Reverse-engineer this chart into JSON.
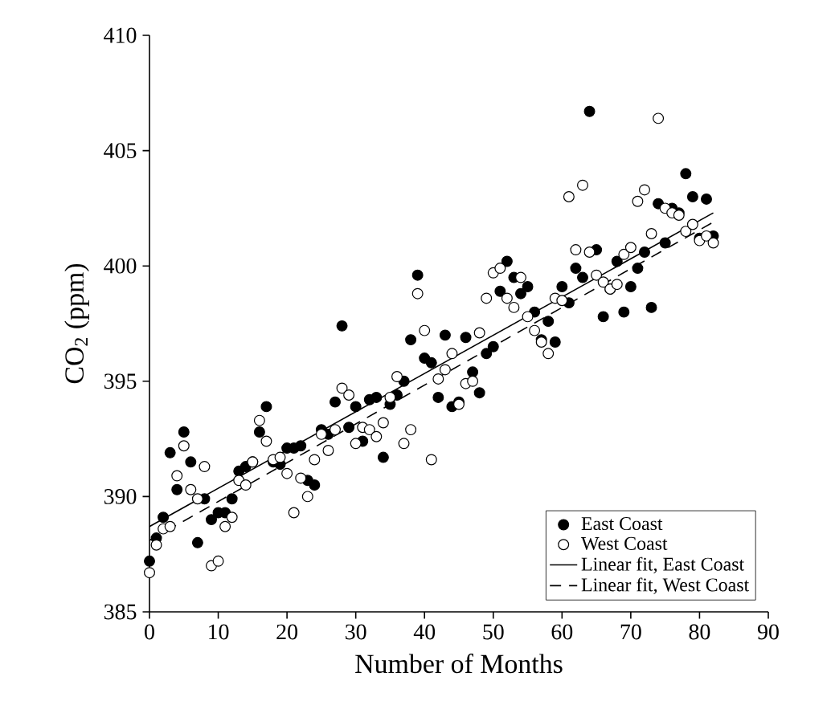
{
  "chart_data": {
    "type": "scatter",
    "xlabel": "Number of Months",
    "ylabel": "CO$_{2}$ (ppm)",
    "xlim": [
      0,
      90
    ],
    "ylim": [
      385,
      410
    ],
    "xticks": [
      0,
      10,
      20,
      30,
      40,
      50,
      60,
      70,
      80,
      90
    ],
    "yticks": [
      385,
      390,
      395,
      400,
      405,
      410
    ],
    "grid": false,
    "legend": "bottom right",
    "series": [
      {
        "name": "East Coast",
        "marker": "circle",
        "color": "#000000",
        "x": [
          0,
          1,
          2,
          3,
          4,
          5,
          6,
          7,
          8,
          9,
          10,
          11,
          12,
          13,
          14,
          15,
          16,
          17,
          18,
          19,
          20,
          21,
          22,
          23,
          24,
          25,
          26,
          27,
          28,
          29,
          30,
          31,
          32,
          33,
          34,
          35,
          36,
          37,
          38,
          39,
          40,
          41,
          42,
          43,
          44,
          45,
          46,
          47,
          48,
          49,
          50,
          51,
          52,
          53,
          54,
          55,
          56,
          57,
          58,
          59,
          60,
          61,
          62,
          63,
          64,
          65,
          66,
          67,
          68,
          69,
          70,
          71,
          72,
          73,
          74,
          75,
          76,
          77,
          78,
          79,
          80,
          81,
          82
        ],
        "values": [
          387.2,
          388.2,
          389.1,
          391.9,
          390.3,
          392.8,
          391.5,
          388.0,
          389.9,
          389.0,
          389.3,
          389.3,
          389.9,
          391.1,
          391.3,
          391.5,
          392.8,
          393.9,
          391.5,
          391.4,
          392.1,
          392.1,
          392.2,
          390.7,
          390.5,
          392.9,
          392.7,
          394.1,
          397.4,
          393.0,
          393.9,
          392.4,
          394.2,
          394.3,
          391.7,
          394.0,
          394.4,
          395.0,
          396.8,
          399.6,
          396.0,
          395.8,
          394.3,
          397.0,
          393.9,
          394.1,
          396.9,
          395.4,
          394.5,
          396.2,
          396.5,
          398.9,
          400.2,
          399.5,
          398.8,
          399.1,
          398.0,
          396.8,
          397.6,
          396.7,
          399.1,
          398.4,
          399.9,
          399.5,
          406.7,
          400.7,
          397.8,
          399.0,
          400.2,
          398.0,
          399.1,
          399.9,
          400.6,
          398.2,
          402.7,
          401.0,
          402.5,
          402.3,
          404.0,
          403.0,
          401.2,
          402.9,
          401.3
        ]
      },
      {
        "name": "West Coast",
        "marker": "circle",
        "color": "#ffffff",
        "x": [
          0,
          1,
          2,
          3,
          4,
          5,
          6,
          7,
          8,
          9,
          10,
          11,
          12,
          13,
          14,
          15,
          16,
          17,
          18,
          19,
          20,
          21,
          22,
          23,
          24,
          25,
          26,
          27,
          28,
          29,
          30,
          31,
          32,
          33,
          34,
          35,
          36,
          37,
          38,
          39,
          40,
          41,
          42,
          43,
          44,
          45,
          46,
          47,
          48,
          49,
          50,
          51,
          52,
          53,
          54,
          55,
          56,
          57,
          58,
          59,
          60,
          61,
          62,
          63,
          64,
          65,
          66,
          67,
          68,
          69,
          70,
          71,
          72,
          73,
          74,
          75,
          76,
          77,
          78,
          79,
          80,
          81,
          82
        ],
        "values": [
          386.7,
          387.9,
          388.6,
          388.7,
          390.9,
          392.2,
          390.3,
          389.9,
          391.3,
          387.0,
          387.2,
          388.7,
          389.1,
          390.7,
          390.5,
          391.5,
          393.3,
          392.4,
          391.6,
          391.7,
          391.0,
          389.3,
          390.8,
          390.0,
          391.6,
          392.7,
          392.0,
          392.9,
          394.7,
          394.4,
          392.3,
          393.0,
          392.9,
          392.6,
          393.2,
          394.3,
          395.2,
          392.3,
          392.9,
          398.8,
          397.2,
          391.6,
          395.1,
          395.5,
          396.2,
          394.0,
          394.9,
          395.0,
          397.1,
          398.6,
          399.7,
          399.9,
          398.6,
          398.2,
          399.5,
          397.8,
          397.2,
          396.7,
          396.2,
          398.6,
          398.5,
          403.0,
          400.7,
          403.5,
          400.6,
          399.6,
          399.3,
          399.0,
          399.2,
          400.5,
          400.8,
          402.8,
          403.3,
          401.4,
          406.4,
          402.5,
          402.3,
          402.2,
          401.5,
          401.8,
          401.1,
          401.3,
          401.0
        ]
      },
      {
        "name": "Linear fit, East Coast",
        "type": "line",
        "marker": "none",
        "color": "#000000",
        "line_style": "solid",
        "x": [
          0,
          82
        ],
        "values": [
          388.7,
          402.3
        ]
      },
      {
        "name": "Linear fit, West Coast",
        "type": "line",
        "marker": "none",
        "color": "#000000",
        "line_style": "dashed",
        "x": [
          0,
          82
        ],
        "values": [
          388.1,
          401.9
        ]
      }
    ]
  }
}
